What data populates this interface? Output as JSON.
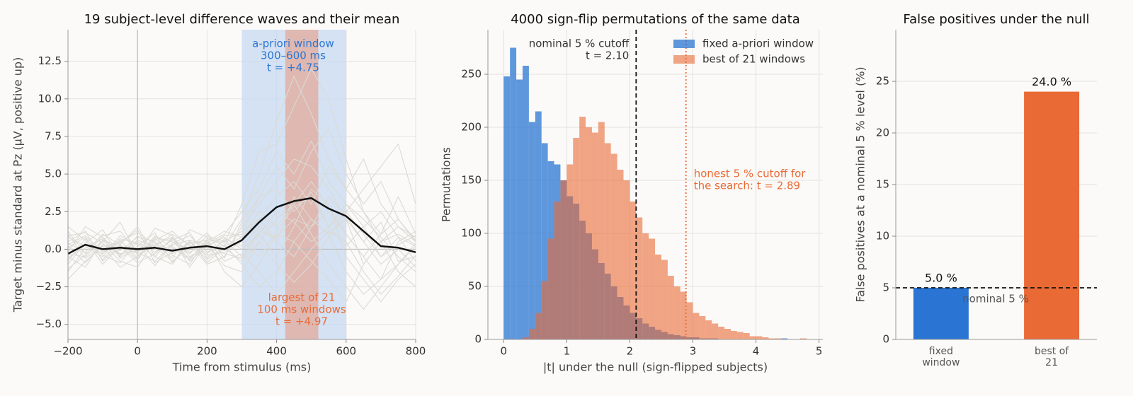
{
  "chart_data": [
    {
      "type": "line",
      "title": "19 subject-level difference waves and their mean",
      "xlabel": "Time from stimulus (ms)",
      "ylabel": "Target minus standard at Pz (μV, positive up)",
      "xlim": [
        -200,
        800
      ],
      "ylim": [
        -6,
        14.6
      ],
      "xticks": [
        {
          "value": -200,
          "label": "−200"
        },
        0,
        200,
        400,
        600,
        800
      ],
      "yticks": [
        {
          "value": -5,
          "label": "−5.0"
        },
        {
          "value": -2.5,
          "label": "−2.5"
        },
        {
          "value": 0,
          "label": "0.0"
        },
        2.5,
        {
          "value": 5,
          "label": "5.0"
        },
        7.5,
        {
          "value": 10,
          "label": "10.0"
        },
        12.5
      ],
      "grid": true,
      "subject_color": "#dcdad4",
      "mean_color": "#111111",
      "spans": [
        {
          "x": [
            300,
            600
          ],
          "color": "#c7d9f3"
        },
        {
          "x": [
            425,
            520
          ],
          "color": "#e3a99c"
        }
      ],
      "annotations": [
        {
          "lines": [
            "a-priori window",
            "300–600 ms",
            "t = +4.75"
          ],
          "color": "#2a75d3"
        },
        {
          "lines": [
            "largest of 21",
            "100 ms windows",
            "t = +4.97"
          ],
          "color": "#e96a35"
        }
      ],
      "x": [
        -200,
        -150,
        -100,
        -50,
        0,
        50,
        100,
        150,
        200,
        250,
        300,
        350,
        400,
        450,
        500,
        550,
        600,
        650,
        700,
        750,
        800
      ],
      "mean": [
        -0.3,
        0.3,
        0.0,
        0.1,
        0.0,
        0.1,
        -0.1,
        0.1,
        0.2,
        0.0,
        0.6,
        1.8,
        2.8,
        3.2,
        3.4,
        2.7,
        2.2,
        1.2,
        0.2,
        0.1,
        -0.2
      ],
      "subjects": [
        [
          0.5,
          1.2,
          -0.8,
          0.3,
          1.5,
          -0.5,
          0.8,
          -1.2,
          0.4,
          1.0,
          2.5,
          4.0,
          6.5,
          5.0,
          7.2,
          4.5,
          3.0,
          1.5,
          -0.5,
          0.8,
          0.2
        ],
        [
          -1.0,
          0.4,
          1.3,
          -0.6,
          0.2,
          1.1,
          -0.9,
          0.5,
          -0.3,
          0.6,
          -0.5,
          1.2,
          0.8,
          2.0,
          1.5,
          3.5,
          2.2,
          0.5,
          1.8,
          -0.8,
          -0.5
        ],
        [
          1.2,
          -0.3,
          0.5,
          1.8,
          -0.4,
          0.2,
          1.0,
          0.3,
          -1.0,
          -0.5,
          1.5,
          3.0,
          4.5,
          6.0,
          5.5,
          4.0,
          2.0,
          -1.0,
          0.5,
          1.5,
          0.8
        ],
        [
          -2.0,
          -0.8,
          0.2,
          -1.2,
          -0.5,
          0.9,
          0.1,
          -0.7,
          0.6,
          -1.5,
          -2.5,
          -1.0,
          1.0,
          0.5,
          -0.8,
          -2.0,
          -3.5,
          -1.0,
          0.5,
          -1.5,
          -2.5
        ],
        [
          0.3,
          0.9,
          -0.2,
          0.5,
          1.1,
          0.4,
          -0.6,
          1.3,
          0.8,
          0.2,
          2.0,
          5.0,
          8.5,
          11.5,
          9.0,
          6.0,
          4.0,
          2.5,
          1.0,
          3.5,
          1.0
        ],
        [
          -0.5,
          -1.2,
          0.6,
          0.2,
          -0.9,
          -0.3,
          0.7,
          -0.2,
          0.5,
          1.2,
          0.8,
          2.5,
          1.5,
          3.0,
          4.5,
          2.8,
          1.0,
          -0.5,
          -2.0,
          -1.0,
          0.4
        ],
        [
          0.8,
          0.2,
          -0.5,
          0.9,
          0.3,
          -1.1,
          0.4,
          0.9,
          -0.2,
          0.3,
          -1.0,
          -2.5,
          -1.5,
          0.5,
          2.0,
          1.0,
          -1.5,
          -3.0,
          -2.0,
          0.5,
          1.2
        ],
        [
          -0.2,
          1.5,
          0.8,
          -0.4,
          0.6,
          0.2,
          -0.8,
          0.1,
          1.1,
          -0.6,
          1.8,
          3.5,
          5.5,
          4.0,
          6.5,
          8.0,
          5.0,
          3.0,
          4.5,
          2.0,
          0.5
        ],
        [
          1.5,
          0.6,
          -1.0,
          0.2,
          -0.3,
          1.4,
          0.9,
          -0.5,
          0.2,
          0.8,
          0.0,
          1.0,
          2.5,
          1.8,
          0.5,
          1.5,
          3.0,
          2.0,
          0.8,
          -0.5,
          -1.5
        ],
        [
          -1.3,
          -0.4,
          0.9,
          1.2,
          -0.2,
          -0.8,
          0.3,
          0.6,
          -0.9,
          0.1,
          -0.8,
          0.5,
          -1.0,
          -2.2,
          -1.0,
          0.8,
          2.5,
          1.0,
          -0.5,
          0.3,
          0.9
        ],
        [
          0.2,
          -0.9,
          0.3,
          -0.1,
          0.8,
          0.5,
          -0.4,
          -1.0,
          0.7,
          0.4,
          3.0,
          6.5,
          7.0,
          9.5,
          12.0,
          10.0,
          6.0,
          2.5,
          0.5,
          1.0,
          0.3
        ],
        [
          0.9,
          1.1,
          0.4,
          -0.8,
          -1.2,
          0.6,
          1.2,
          0.2,
          -0.4,
          -0.2,
          0.5,
          -0.5,
          1.2,
          2.8,
          3.5,
          1.5,
          0.2,
          1.5,
          2.5,
          0.8,
          -0.8
        ],
        [
          -0.6,
          0.3,
          -0.3,
          0.7,
          0.4,
          -0.5,
          -1.0,
          0.6,
          0.3,
          -1.1,
          -1.5,
          0.5,
          2.0,
          3.0,
          1.0,
          -1.0,
          -2.5,
          -4.0,
          -2.5,
          -1.0,
          0.2
        ],
        [
          0.4,
          -0.2,
          1.0,
          0.3,
          -0.7,
          0.8,
          0.5,
          -0.3,
          0.9,
          0.5,
          1.2,
          2.0,
          3.5,
          4.5,
          3.0,
          5.5,
          4.0,
          6.0,
          3.0,
          1.5,
          0.5
        ],
        [
          -0.8,
          0.7,
          -0.4,
          -0.9,
          0.5,
          -0.2,
          0.6,
          1.1,
          -0.6,
          0.7,
          0.2,
          1.5,
          0.5,
          -0.5,
          1.5,
          2.5,
          1.0,
          -0.5,
          1.0,
          2.0,
          0.6
        ],
        [
          1.0,
          -0.6,
          0.2,
          0.4,
          1.3,
          -0.9,
          -0.2,
          0.4,
          0.6,
          -0.8,
          -0.3,
          -1.5,
          -3.0,
          -1.5,
          0.0,
          1.2,
          0.5,
          -1.5,
          -3.0,
          -1.8,
          -0.4
        ],
        [
          -1.5,
          0.1,
          0.7,
          -0.3,
          -0.1,
          0.3,
          0.8,
          -0.8,
          0.2,
          0.9,
          1.0,
          3.5,
          4.0,
          2.5,
          3.8,
          1.5,
          2.5,
          4.0,
          5.5,
          7.0,
          3.0
        ],
        [
          0.1,
          0.8,
          -0.7,
          0.6,
          -0.6,
          0.7,
          -0.3,
          0.5,
          -0.7,
          0.2,
          0.8,
          2.0,
          0.5,
          3.5,
          2.0,
          1.0,
          2.0,
          0.5,
          -1.0,
          0.0,
          -1.2
        ],
        [
          -0.3,
          -0.5,
          0.6,
          -0.5,
          0.9,
          0.0,
          0.2,
          -0.6,
          0.4,
          -0.3,
          -0.6,
          1.0,
          -0.5,
          1.5,
          4.0,
          3.0,
          -0.5,
          -2.0,
          -3.5,
          -2.0,
          -1.0
        ]
      ]
    },
    {
      "type": "histogram",
      "title": "4000 sign-flip permutations of the same data",
      "xlabel": "|t| under the null (sign-flipped subjects)",
      "ylabel": "Permutations",
      "xlim": [
        -0.25,
        5.06
      ],
      "ylim": [
        0,
        292
      ],
      "xticks": [
        0,
        1,
        2,
        3,
        4,
        5
      ],
      "yticks": [
        0,
        50,
        100,
        150,
        200,
        250
      ],
      "grid": true,
      "legend": "upper right",
      "bins": [
        0,
        0.1,
        0.2,
        0.3,
        0.4,
        0.5,
        0.6,
        0.7,
        0.8,
        0.9,
        1,
        1.1,
        1.2,
        1.3,
        1.4,
        1.5,
        1.6,
        1.7,
        1.8,
        1.9,
        2,
        2.1,
        2.2,
        2.3,
        2.4,
        2.5,
        2.6,
        2.7,
        2.8,
        2.9,
        3,
        3.1,
        3.2,
        3.3,
        3.4,
        3.5,
        3.6,
        3.7,
        3.8,
        3.9,
        4,
        4.1,
        4.2,
        4.3,
        4.4,
        4.5,
        4.6,
        4.7,
        4.8
      ],
      "series": [
        {
          "name": "fixed a-priori window",
          "color": "#2a75d3",
          "values": [
            248,
            275,
            245,
            258,
            205,
            215,
            185,
            168,
            165,
            150,
            135,
            128,
            112,
            100,
            85,
            72,
            62,
            50,
            40,
            32,
            25,
            20,
            15,
            12,
            9,
            7,
            5,
            4,
            3,
            2,
            2,
            1,
            1,
            1,
            0,
            0,
            0,
            0,
            0,
            0,
            0,
            0,
            0,
            0,
            1,
            0,
            0,
            0
          ]
        },
        {
          "name": "best of 21 windows",
          "color": "#e96a35",
          "values": [
            0,
            0,
            0,
            2,
            10,
            25,
            55,
            95,
            130,
            150,
            165,
            190,
            210,
            200,
            195,
            205,
            185,
            175,
            160,
            150,
            130,
            115,
            100,
            95,
            80,
            75,
            60,
            50,
            45,
            35,
            25,
            22,
            18,
            15,
            12,
            10,
            8,
            7,
            6,
            3,
            3,
            2,
            1,
            1,
            0,
            0,
            0,
            1
          ]
        }
      ],
      "vlines": [
        {
          "value": 2.1,
          "lines": [
            "nominal 5 % cutoff",
            "t = 2.10"
          ],
          "color": "#111111",
          "style": "dashed"
        },
        {
          "value": 2.89,
          "lines": [
            "honest 5 % cutoff for",
            "the search: t = 2.89"
          ],
          "color": "#e96a35",
          "style": "dotted"
        }
      ]
    },
    {
      "type": "bar",
      "title": "False positives under the null",
      "ylabel": "False positives at a nominal 5 % level (%)",
      "ylim": [
        0,
        30
      ],
      "yticks": [
        0,
        5,
        10,
        15,
        20,
        25
      ],
      "grid": true,
      "categories": [
        [
          "fixed",
          "window"
        ],
        [
          "best of",
          "21"
        ]
      ],
      "values": [
        5.0,
        24.0
      ],
      "value_labels": [
        "5.0 %",
        "24.0 %"
      ],
      "colors": [
        "#2a75d3",
        "#e96a35"
      ],
      "reference": {
        "value": 5,
        "label": "nominal 5 %"
      }
    }
  ]
}
